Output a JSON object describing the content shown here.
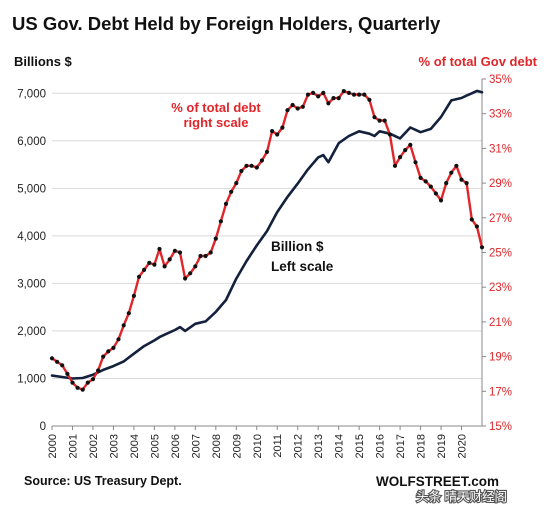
{
  "chart_data": {
    "type": "line",
    "title": "US Gov. Debt Held by Foreign Holders, Quarterly",
    "y_left_label": "Billions $",
    "y_right_label": "% of total Gov debt",
    "y_left_ticks": [
      "0",
      "1,000",
      "2,000",
      "3,000",
      "4,000",
      "5,000",
      "6,000",
      "7,000"
    ],
    "y_right_ticks": [
      "15%",
      "17%",
      "19%",
      "21%",
      "23%",
      "25%",
      "27%",
      "29%",
      "31%",
      "33%",
      "35%"
    ],
    "ylim_left": [
      0,
      7300
    ],
    "ylim_right": [
      15,
      35
    ],
    "x_ticks": [
      "2000",
      "2001",
      "2002",
      "2003",
      "2004",
      "2005",
      "2006",
      "2007",
      "2008",
      "2009",
      "2010",
      "2011",
      "2012",
      "2013",
      "2014",
      "2015",
      "2016",
      "2017",
      "2018",
      "2019",
      "2020"
    ],
    "xlim": [
      2000,
      2021
    ],
    "grid": true,
    "annotations": {
      "pct_label_line1": "% of total debt",
      "pct_label_line2": "right scale",
      "billion_label_line1": "Billion $",
      "billion_label_line2": "Left scale"
    },
    "series": [
      {
        "name": "Billion $",
        "axis": "left",
        "color": "#14213d",
        "x": [
          2000.0,
          2000.5,
          2001.0,
          2001.5,
          2002.0,
          2002.5,
          2003.0,
          2003.5,
          2004.0,
          2004.5,
          2005.0,
          2005.25,
          2005.5,
          2006.0,
          2006.25,
          2006.5,
          2007.0,
          2007.5,
          2008.0,
          2008.5,
          2009.0,
          2009.5,
          2010.0,
          2010.5,
          2011.0,
          2011.5,
          2012.0,
          2012.5,
          2013.0,
          2013.25,
          2013.5,
          2014.0,
          2014.5,
          2015.0,
          2015.5,
          2015.75,
          2016.0,
          2016.5,
          2017.0,
          2017.5,
          2018.0,
          2018.5,
          2019.0,
          2019.5,
          2020.0,
          2020.25,
          2020.5,
          2020.75,
          2021.0
        ],
        "values": [
          1060,
          1030,
          1000,
          1010,
          1080,
          1180,
          1260,
          1360,
          1520,
          1680,
          1800,
          1870,
          1920,
          2020,
          2080,
          2000,
          2150,
          2200,
          2400,
          2650,
          3100,
          3470,
          3800,
          4100,
          4500,
          4820,
          5100,
          5400,
          5650,
          5700,
          5550,
          5950,
          6100,
          6200,
          6150,
          6100,
          6200,
          6150,
          6050,
          6280,
          6180,
          6250,
          6500,
          6850,
          6900,
          6950,
          7000,
          7050,
          7020
        ]
      },
      {
        "name": "% of total debt",
        "axis": "right",
        "color": "#e0262a",
        "x": [
          2000.0,
          2000.25,
          2000.5,
          2000.75,
          2001.0,
          2001.25,
          2001.5,
          2001.75,
          2002.0,
          2002.25,
          2002.5,
          2002.75,
          2003.0,
          2003.25,
          2003.5,
          2003.75,
          2004.0,
          2004.25,
          2004.5,
          2004.75,
          2005.0,
          2005.25,
          2005.5,
          2005.75,
          2006.0,
          2006.25,
          2006.5,
          2006.75,
          2007.0,
          2007.25,
          2007.5,
          2007.75,
          2008.0,
          2008.25,
          2008.5,
          2008.75,
          2009.0,
          2009.25,
          2009.5,
          2009.75,
          2010.0,
          2010.25,
          2010.5,
          2010.75,
          2011.0,
          2011.25,
          2011.5,
          2011.75,
          2012.0,
          2012.25,
          2012.5,
          2012.75,
          2013.0,
          2013.25,
          2013.5,
          2013.75,
          2014.0,
          2014.25,
          2014.5,
          2014.75,
          2015.0,
          2015.25,
          2015.5,
          2015.75,
          2016.0,
          2016.25,
          2016.5,
          2016.75,
          2017.0,
          2017.25,
          2017.5,
          2017.75,
          2018.0,
          2018.25,
          2018.5,
          2018.75,
          2019.0,
          2019.25,
          2019.5,
          2019.75,
          2020.0,
          2020.25,
          2020.5,
          2020.75,
          2021.0
        ],
        "values": [
          18.9,
          18.7,
          18.5,
          18.0,
          17.5,
          17.2,
          17.1,
          17.5,
          17.7,
          18.2,
          19.0,
          19.3,
          19.5,
          20.0,
          20.8,
          21.5,
          22.5,
          23.6,
          24.0,
          24.4,
          24.3,
          25.2,
          24.2,
          24.6,
          25.1,
          25.0,
          23.5,
          23.8,
          24.2,
          24.8,
          24.8,
          25.0,
          25.8,
          26.8,
          27.8,
          28.5,
          29.0,
          29.7,
          30.0,
          30.0,
          29.9,
          30.3,
          30.8,
          32.0,
          31.8,
          32.2,
          33.2,
          33.5,
          33.3,
          33.4,
          34.1,
          34.2,
          34.0,
          34.2,
          33.6,
          33.9,
          33.9,
          34.3,
          34.2,
          34.1,
          34.1,
          34.1,
          33.8,
          32.8,
          32.6,
          32.6,
          31.8,
          30.0,
          30.5,
          30.9,
          31.2,
          30.2,
          29.3,
          29.1,
          28.8,
          28.4,
          28.0,
          29.0,
          29.6,
          30.0,
          29.2,
          29.0,
          26.9,
          26.5,
          25.3
        ]
      }
    ]
  },
  "footer": {
    "source": "Source: US Treasury Dept.",
    "brand": "WOLFSTREET.com",
    "watermark": "头条 晴天财经阁"
  }
}
